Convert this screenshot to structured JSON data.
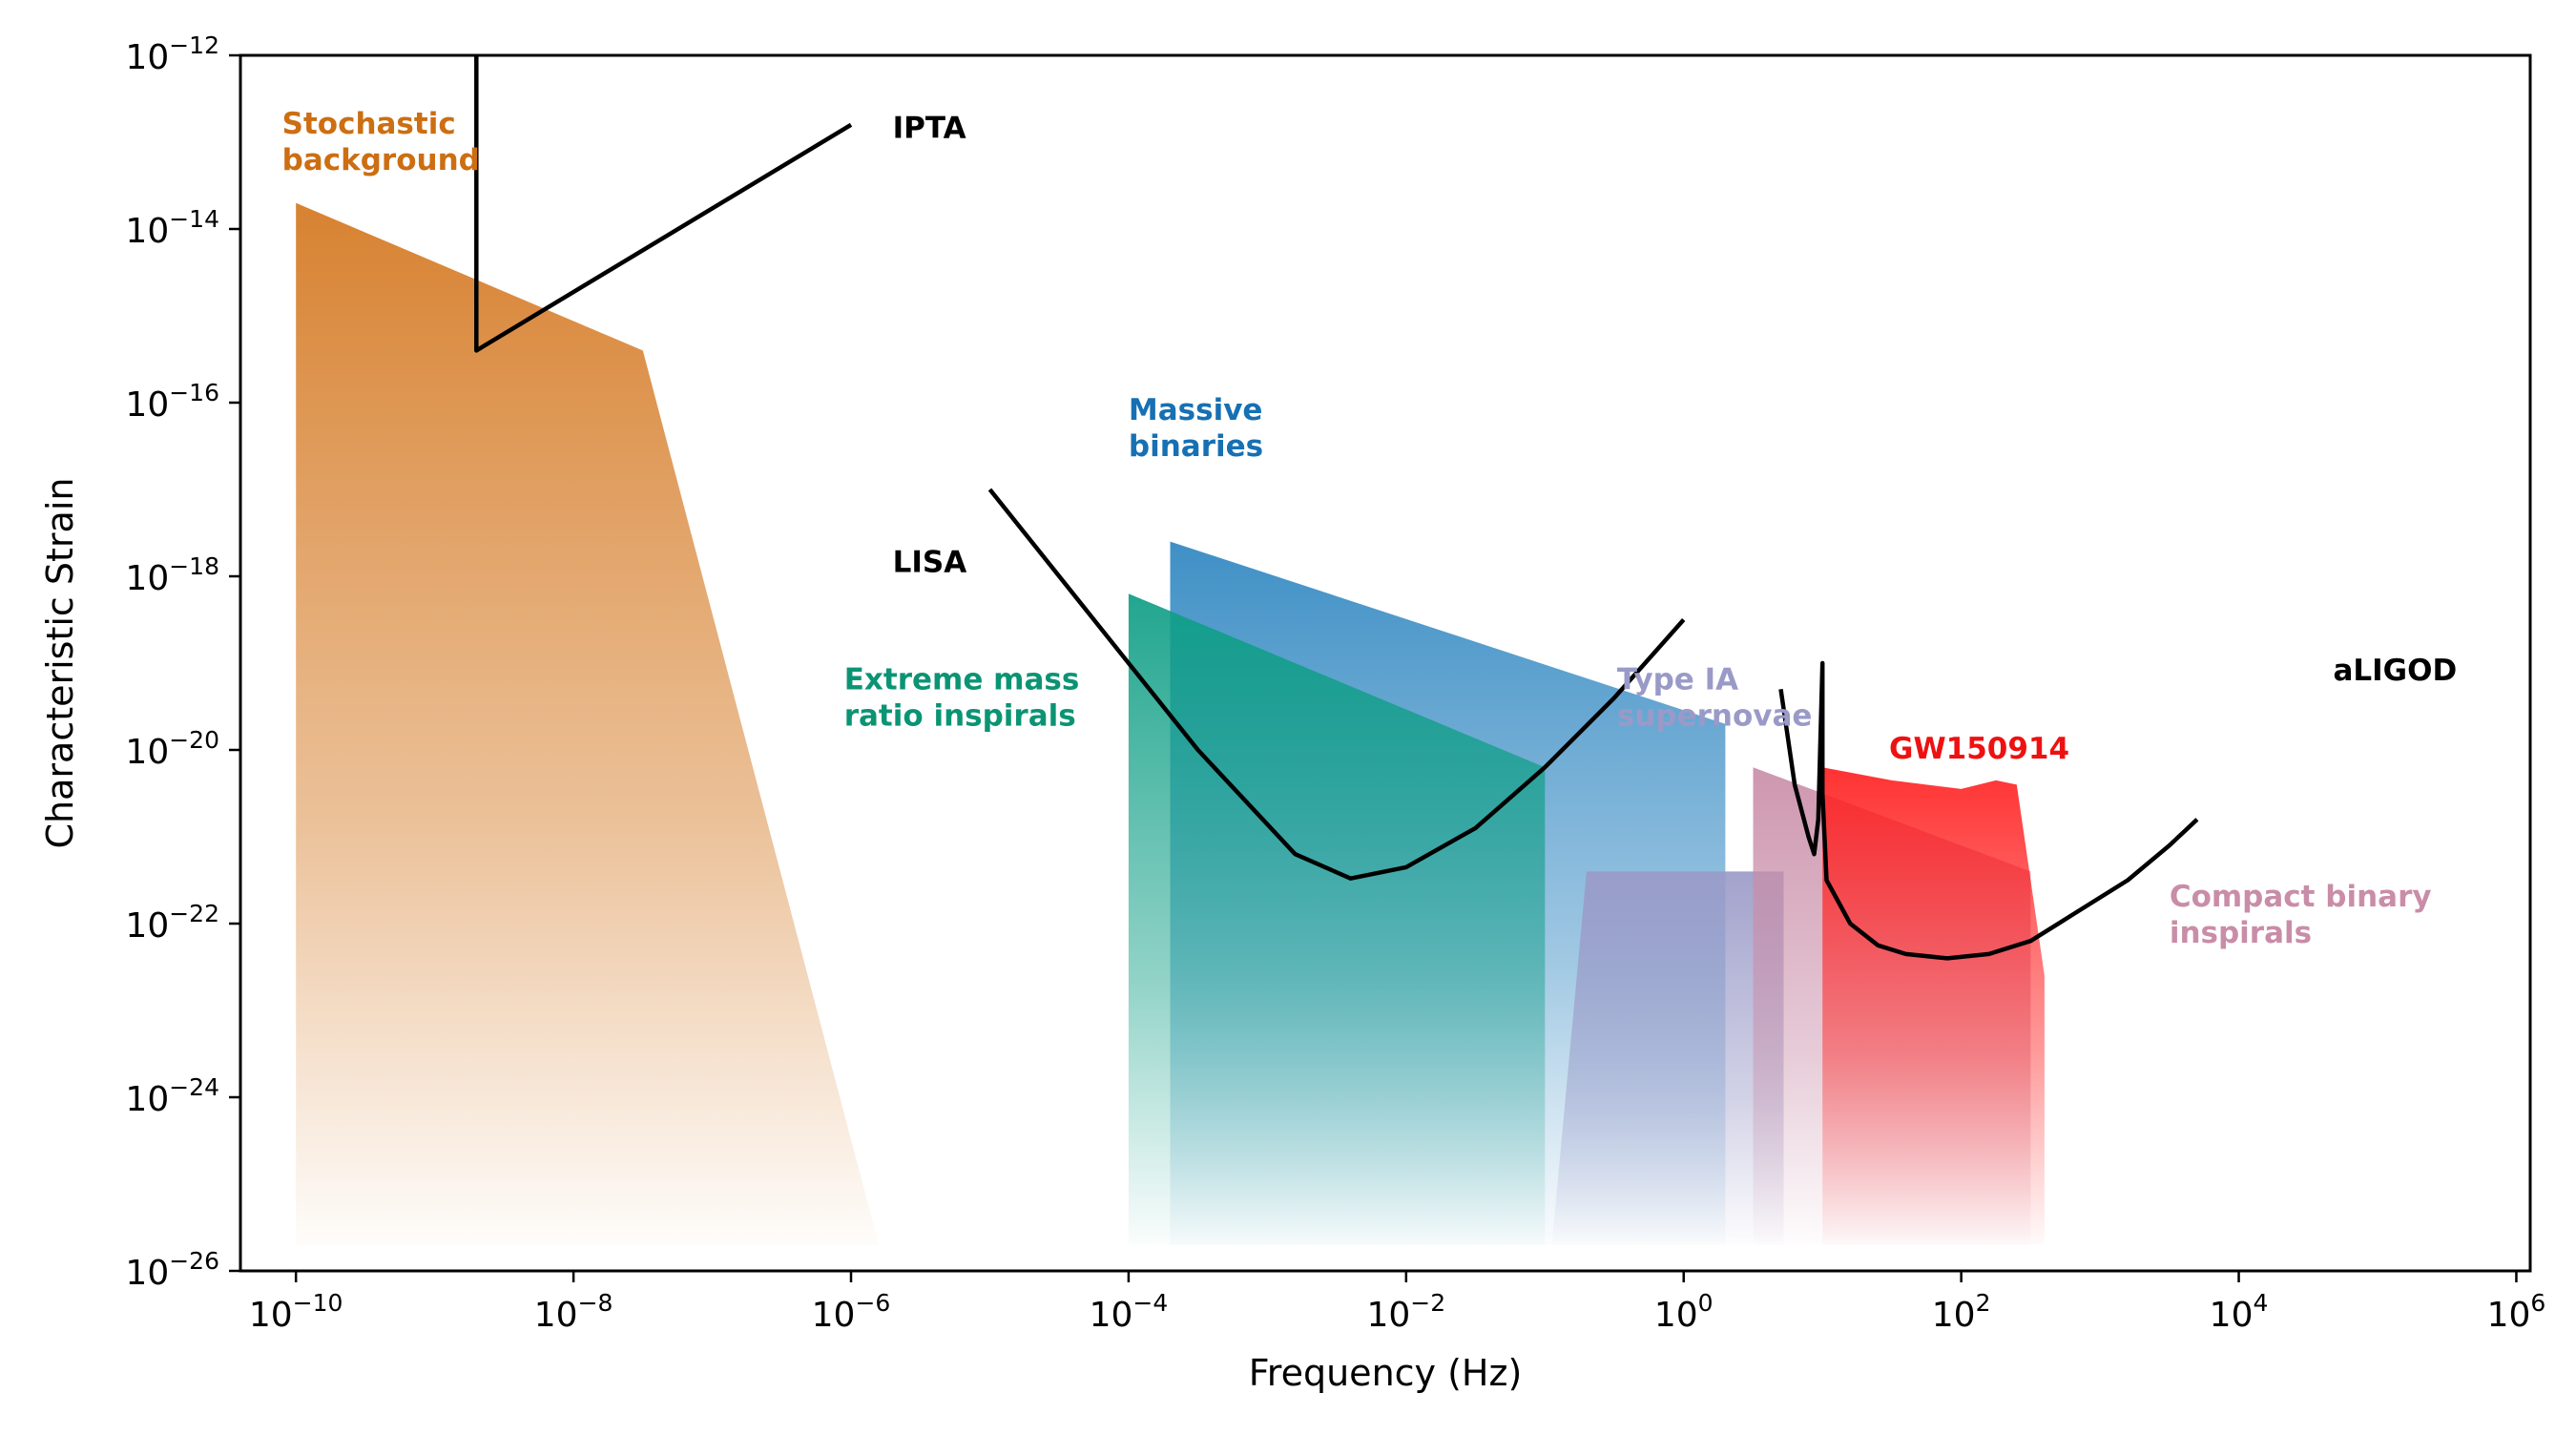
{
  "chart_data": {
    "type": "area",
    "xlabel": "Frequency (Hz)",
    "ylabel": "Characteristic Strain",
    "xscale": "log",
    "yscale": "log",
    "xlim_exponent": [
      -10.4,
      6.1
    ],
    "ylim_exponent": [
      -26,
      -12
    ],
    "x_ticks": [
      {
        "base": "10",
        "exp": "−10",
        "value": -10
      },
      {
        "base": "10",
        "exp": "−8",
        "value": -8
      },
      {
        "base": "10",
        "exp": "−6",
        "value": -6
      },
      {
        "base": "10",
        "exp": "−4",
        "value": -4
      },
      {
        "base": "10",
        "exp": "−2",
        "value": -2
      },
      {
        "base": "10",
        "exp": "0",
        "value": 0
      },
      {
        "base": "10",
        "exp": "2",
        "value": 2
      },
      {
        "base": "10",
        "exp": "4",
        "value": 4
      },
      {
        "base": "10",
        "exp": "6",
        "value": 6
      }
    ],
    "y_ticks": [
      {
        "base": "10",
        "exp": "−12",
        "value": -12
      },
      {
        "base": "10",
        "exp": "−14",
        "value": -14
      },
      {
        "base": "10",
        "exp": "−16",
        "value": -16
      },
      {
        "base": "10",
        "exp": "−18",
        "value": -18
      },
      {
        "base": "10",
        "exp": "−20",
        "value": -20
      },
      {
        "base": "10",
        "exp": "−22",
        "value": -22
      },
      {
        "base": "10",
        "exp": "−24",
        "value": -24
      },
      {
        "base": "10",
        "exp": "−26",
        "value": -26
      }
    ],
    "regions": [
      {
        "id": "stochastic",
        "label": [
          "Stochastic",
          "background"
        ],
        "color": "#D4771F",
        "label_color": "#CC6E12",
        "label_at": [
          -10.1,
          -12.9
        ],
        "polygon": [
          [
            -10,
            -13.7
          ],
          [
            -7.5,
            -15.4
          ],
          [
            -5.8,
            -25.7
          ],
          [
            -10,
            -25.7
          ]
        ]
      },
      {
        "id": "massive_binaries",
        "label": [
          "Massive",
          "binaries"
        ],
        "color": "#2E86C1",
        "label_color": "#1670B3",
        "label_at": [
          -4.0,
          -16.2
        ],
        "polygon": [
          [
            -3.7,
            -17.6
          ],
          [
            0.3,
            -19.7
          ],
          [
            0.3,
            -25.7
          ],
          [
            -3.7,
            -25.7
          ]
        ]
      },
      {
        "id": "emri",
        "label": [
          "Extreme mass",
          "ratio inspirals"
        ],
        "color": "#0E9E85",
        "label_color": "#0B9474",
        "label_at": [
          -6.05,
          -19.3
        ],
        "polygon": [
          [
            -4.0,
            -18.2
          ],
          [
            -1.0,
            -20.2
          ],
          [
            -1.0,
            -25.7
          ],
          [
            -4.0,
            -25.7
          ]
        ]
      },
      {
        "id": "type_ia",
        "label": [
          "Type IA",
          "supernovae"
        ],
        "color": "#9A9AC8",
        "label_color": "#9A9AC8",
        "label_at": [
          -0.48,
          -19.3
        ],
        "polygon": [
          [
            -0.7,
            -21.4
          ],
          [
            0.72,
            -21.4
          ],
          [
            0.72,
            -25.7
          ],
          [
            -0.95,
            -25.7
          ]
        ]
      },
      {
        "id": "compact_binary",
        "label": [
          "Compact binary",
          "inspirals"
        ],
        "color": "#C98DA8",
        "label_color": "#C98DA8",
        "label_at": [
          3.5,
          -21.8
        ],
        "polygon": [
          [
            0.5,
            -20.2
          ],
          [
            2.5,
            -21.4
          ],
          [
            2.5,
            -25.7
          ],
          [
            0.5,
            -25.7
          ]
        ]
      },
      {
        "id": "gw150914",
        "label": [
          "GW150914"
        ],
        "color": "#FF2020",
        "label_color": "#EE1111",
        "label_at": [
          1.48,
          -20.1
        ],
        "polygon": [
          [
            1.0,
            -20.2
          ],
          [
            1.5,
            -20.35
          ],
          [
            2.0,
            -20.45
          ],
          [
            2.25,
            -20.35
          ],
          [
            2.4,
            -20.4
          ],
          [
            2.5,
            -21.5
          ],
          [
            2.6,
            -22.6
          ],
          [
            2.6,
            -25.7
          ],
          [
            1.0,
            -25.7
          ]
        ]
      }
    ],
    "curves": [
      {
        "id": "ipta",
        "label": "IPTA",
        "color": "#000000",
        "label_at": [
          -5.7,
          -12.95
        ],
        "points": [
          [
            -8.7,
            -12.0
          ],
          [
            -8.7,
            -15.4
          ],
          [
            -6.0,
            -12.8
          ]
        ]
      },
      {
        "id": "lisa",
        "label": "LISA",
        "color": "#000000",
        "label_at": [
          -5.7,
          -17.95
        ],
        "points": [
          [
            -5.0,
            -17.0
          ],
          [
            -3.5,
            -20.0
          ],
          [
            -2.8,
            -21.2
          ],
          [
            -2.4,
            -21.48
          ],
          [
            -2.0,
            -21.35
          ],
          [
            -1.5,
            -20.9
          ],
          [
            -1.0,
            -20.2
          ],
          [
            -0.5,
            -19.4
          ],
          [
            0.0,
            -18.5
          ]
        ]
      },
      {
        "id": "aligo",
        "label": "aLIGOD",
        "color": "#000000",
        "label_at": [
          4.68,
          -19.2
        ],
        "points": [
          [
            0.7,
            -19.3
          ],
          [
            0.8,
            -20.4
          ],
          [
            0.9,
            -21.0
          ],
          [
            0.94,
            -21.2
          ],
          [
            0.97,
            -20.8
          ],
          [
            1.0,
            -19.0
          ],
          [
            1.0,
            -20.5
          ],
          [
            1.03,
            -21.5
          ],
          [
            1.2,
            -22.0
          ],
          [
            1.4,
            -22.25
          ],
          [
            1.6,
            -22.35
          ],
          [
            1.9,
            -22.4
          ],
          [
            2.2,
            -22.35
          ],
          [
            2.5,
            -22.2
          ],
          [
            2.8,
            -21.9
          ],
          [
            3.2,
            -21.5
          ],
          [
            3.5,
            -21.1
          ],
          [
            3.7,
            -20.8
          ]
        ]
      }
    ]
  }
}
